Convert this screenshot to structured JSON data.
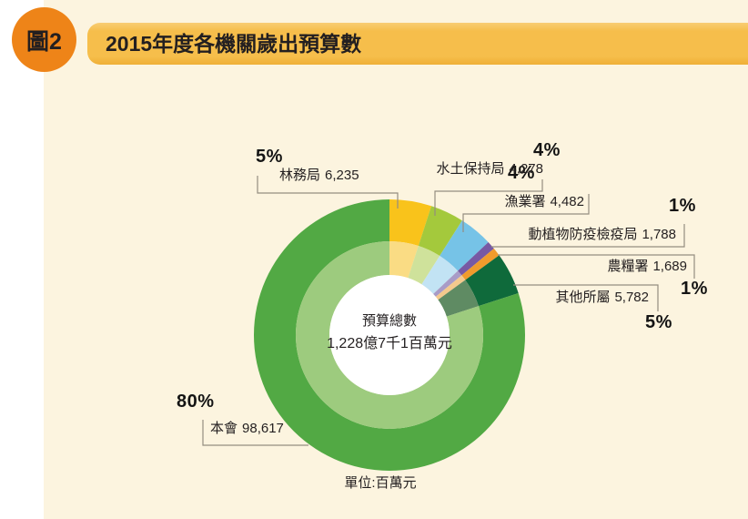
{
  "page": {
    "figure_tag": "圖2",
    "title": "2015年度各機關歲出預算數",
    "unit_note": "單位:百萬元"
  },
  "colors": {
    "background": "#FCF4DF",
    "left_margin": "#FFFFFF",
    "banner": "#F6BE4B",
    "badge": "#EE8418",
    "text": "#231F20",
    "leader_line": "#948D80"
  },
  "chart_data": {
    "type": "pie",
    "subtype": "donut-double-ring",
    "title": "2015年度各機關歲出預算數",
    "unit": "百萬元",
    "legend_position": "callout-labels",
    "inner_ring": "lighter-tint duplicate of outer ring segments",
    "center_label": {
      "line1": "預算總數",
      "line2": "1,228億7千1百萬元"
    },
    "total_value": 122871,
    "segments": [
      {
        "label": "林務局",
        "value": 6235,
        "value_display": "6,235",
        "percent": 5,
        "percent_display": "5%",
        "color": "#F9C31B",
        "color_inner": "#FADC84"
      },
      {
        "label": "水土保持局",
        "value": 4278,
        "value_display": "4,278",
        "percent": 4,
        "percent_display": "4%",
        "color": "#A4C93C",
        "color_inner": "#CFE29B"
      },
      {
        "label": "漁業署",
        "value": 4482,
        "value_display": "4,482",
        "percent": 4,
        "percent_display": "4%",
        "color": "#76C3E7",
        "color_inner": "#C2E3F4"
      },
      {
        "label": "動植物防疫檢疫局",
        "value": 1788,
        "value_display": "1,788",
        "percent": 1,
        "percent_display": "1%",
        "color": "#7759A4",
        "color_inner": "#A89BC7"
      },
      {
        "label": "農糧署",
        "value": 1689,
        "value_display": "1,689",
        "percent": 1,
        "percent_display": "1%",
        "color": "#F09B2C",
        "color_inner": "#F4C98D"
      },
      {
        "label": "其他所屬",
        "value": 5782,
        "value_display": "5,782",
        "percent": 5,
        "percent_display": "5%",
        "color": "#0F6A3B",
        "color_inner": "#5F8B63"
      },
      {
        "label": "本會",
        "value": 98617,
        "value_display": "98,617",
        "percent": 80,
        "percent_display": "80%",
        "color": "#52A944",
        "color_inner": "#9DCB7E"
      }
    ]
  }
}
